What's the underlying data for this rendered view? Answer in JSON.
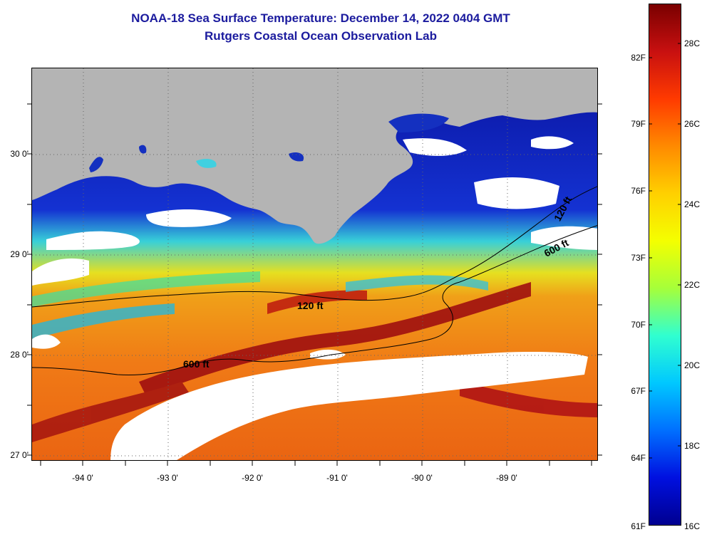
{
  "title_line1": "NOAA-18 Sea Surface Temperature:  December 14, 2022 0404 GMT",
  "title_line2": "Rutgers Coastal Ocean Observation Lab",
  "colors": {
    "land": "#b4b4b4",
    "cloud": "#ffffff",
    "title": "#1b1b9e"
  },
  "latitude_labels": [
    "30 0'",
    "29 0'",
    "28 0'",
    "27 0'"
  ],
  "longitude_labels": [
    "-94 0'",
    "-93 0'",
    "-92 0'",
    "-91 0'",
    "-90 0'",
    "-89 0'"
  ],
  "contours": [
    "120 ft",
    "600 ft",
    "120 ft",
    "600 ft"
  ],
  "colorbar": {
    "fahrenheit": [
      "82F",
      "79F",
      "76F",
      "73F",
      "70F",
      "67F",
      "64F",
      "61F"
    ],
    "celsius": [
      "28C",
      "26C",
      "24C",
      "22C",
      "20C",
      "18C",
      "16C"
    ],
    "gradient_colors": [
      "#7a0000",
      "#c81010",
      "#ff3a00",
      "#ff8a00",
      "#ffd000",
      "#f4ff00",
      "#a6ff3a",
      "#30ffd0",
      "#00c8ff",
      "#0070ff",
      "#0010e0",
      "#000090"
    ]
  }
}
